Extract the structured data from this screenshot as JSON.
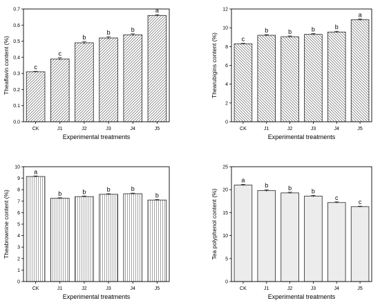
{
  "chart_data": [
    {
      "type": "bar",
      "panel": "theaflavin",
      "categories": [
        "CK",
        "J1",
        "J2",
        "J3",
        "J4",
        "J5"
      ],
      "values": [
        0.31,
        0.39,
        0.49,
        0.52,
        0.54,
        0.66
      ],
      "errors": [
        0.003,
        0.008,
        0.008,
        0.008,
        0.006,
        0.005
      ],
      "letters": [
        "c",
        "c",
        "b",
        "b",
        "b",
        "a"
      ],
      "title": "",
      "xlabel": "Experimental treatments",
      "ylabel": "Theaflavin content (%)",
      "ylim": [
        0,
        0.7
      ],
      "yticks": [
        0.0,
        0.1,
        0.2,
        0.3,
        0.4,
        0.5,
        0.6,
        0.7
      ],
      "ytick_decimals": 1,
      "pattern": "diag-right",
      "fill": "#ffffff"
    },
    {
      "type": "bar",
      "panel": "thearubigins",
      "categories": [
        "CK",
        "J1",
        "J2",
        "J3",
        "J4",
        "J5"
      ],
      "values": [
        8.3,
        9.2,
        9.05,
        9.3,
        9.55,
        10.85
      ],
      "errors": [
        0.05,
        0.08,
        0.08,
        0.08,
        0.08,
        0.1
      ],
      "letters": [
        "c",
        "b",
        "b",
        "b",
        "b",
        "a"
      ],
      "title": "",
      "xlabel": "Experimental treatments",
      "ylabel": "Thearubigins content (%)",
      "ylim": [
        0,
        12
      ],
      "yticks": [
        0,
        2,
        4,
        6,
        8,
        10,
        12
      ],
      "ytick_decimals": 0,
      "pattern": "diag-left",
      "fill": "#ffffff"
    },
    {
      "type": "bar",
      "panel": "theabrownine",
      "categories": [
        "CK",
        "J1",
        "J2",
        "J3",
        "J4",
        "J5"
      ],
      "values": [
        9.15,
        7.25,
        7.4,
        7.6,
        7.65,
        7.1
      ],
      "errors": [
        0.05,
        0.05,
        0.05,
        0.05,
        0.05,
        0.05
      ],
      "letters": [
        "a",
        "b",
        "b",
        "b",
        "b",
        "b"
      ],
      "title": "",
      "xlabel": "Experimental treatments",
      "ylabel": "Theabrownine content (%)",
      "ylim": [
        0,
        10
      ],
      "yticks": [
        0,
        1,
        2,
        3,
        4,
        5,
        6,
        7,
        8,
        9,
        10
      ],
      "ytick_decimals": 0,
      "pattern": "vertical",
      "fill": "#ffffff"
    },
    {
      "type": "bar",
      "panel": "tea-polyphenol",
      "categories": [
        "CK",
        "J1",
        "J2",
        "J3",
        "J4",
        "J5"
      ],
      "values": [
        21.0,
        19.8,
        19.3,
        18.6,
        17.2,
        16.3
      ],
      "errors": [
        0.15,
        0.2,
        0.15,
        0.15,
        0.15,
        0.1
      ],
      "letters": [
        "a",
        "b",
        "b",
        "b",
        "c",
        "c"
      ],
      "title": "",
      "xlabel": "Experimental treatments",
      "ylabel": "Tea polyphenol content (%)",
      "ylim": [
        0,
        25
      ],
      "yticks": [
        0,
        5,
        10,
        15,
        20,
        25
      ],
      "ytick_decimals": 0,
      "pattern": "none",
      "fill": "#ececec"
    }
  ]
}
